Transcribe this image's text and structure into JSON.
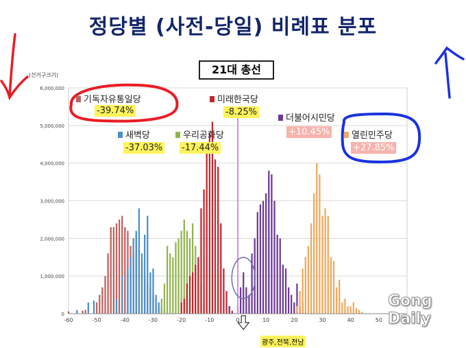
{
  "headline": "정당별 (사전-당일) 비례표 분포",
  "chart_data": {
    "type": "bar",
    "title": "21대 총선",
    "yunit": "(선거구크기)",
    "xlim": [
      -60,
      60
    ],
    "ylim": [
      0,
      6000000
    ],
    "xticks": [
      -60,
      -50,
      -40,
      -30,
      -20,
      -10,
      0,
      10,
      20,
      30,
      40,
      50
    ],
    "xtick_labels": [
      "-60",
      "-50",
      "-40",
      "-30",
      "-20",
      "-10",
      "0",
      "10",
      "20",
      "30",
      "40",
      "50"
    ],
    "yticks": [
      0,
      1000000,
      2000000,
      3000000,
      4000000,
      5000000,
      6000000
    ],
    "ytick_labels": [
      "0",
      "1,000,000",
      "2,000,000",
      "3,000,000",
      "4,000,000",
      "5,000,000",
      "6,000,000"
    ],
    "grid": true,
    "reference_line_x": 0,
    "series": [
      {
        "name": "기독자유통일당",
        "pct": "-39.74%",
        "color": "#c0605e",
        "label_style": "yellow",
        "x": [
          -60,
          -55,
          -54,
          -50,
          -49,
          -48,
          -47,
          -46,
          -45,
          -44,
          -43,
          -42,
          -41,
          -40,
          -39,
          -38,
          -37,
          -36,
          -35,
          -34,
          -33,
          -32,
          -31,
          -30,
          -29,
          -28,
          -27,
          -26
        ],
        "values": [
          60000,
          80000,
          100000,
          300000,
          500000,
          700000,
          1000000,
          1600000,
          2300000,
          2300000,
          2400000,
          2500000,
          2600000,
          2300000,
          2200000,
          1800000,
          1600000,
          2100000,
          1700000,
          1400000,
          1000000,
          800000,
          700000,
          500000,
          300000,
          200000,
          150000,
          100000
        ]
      },
      {
        "name": "새벽당",
        "pct": "-37.03%",
        "color": "#4a90c8",
        "label_style": "yellow",
        "x": [
          -57,
          -53,
          -51,
          -43,
          -41,
          -39,
          -38,
          -37,
          -36,
          -35,
          -34,
          -33,
          -32,
          -31,
          -30,
          -29,
          -28,
          -27
        ],
        "values": [
          100000,
          300000,
          350000,
          400000,
          1000000,
          1200000,
          1500000,
          2000000,
          2200000,
          2800000,
          1600000,
          2100000,
          2600000,
          1100000,
          1200000,
          500000,
          300000,
          200000
        ]
      },
      {
        "name": "우리공화당",
        "pct": "-17.44%",
        "color": "#93b34e",
        "label_style": "yellow",
        "x": [
          -27,
          -26,
          -25,
          -24,
          -23,
          -22,
          -21,
          -20,
          -19,
          -18,
          -17,
          -16,
          -15,
          -14,
          -13,
          -12
        ],
        "values": [
          400000,
          800000,
          1800000,
          1600000,
          1500000,
          1900000,
          2000000,
          2200000,
          2500000,
          2200000,
          2000000,
          2400000,
          1800000,
          1300000,
          800000,
          300000
        ]
      },
      {
        "name": "미래한국당",
        "pct": "-8.25%",
        "color": "#c0272d",
        "label_style": "yellow",
        "x": [
          -20,
          -19,
          -18,
          -17,
          -16,
          -15,
          -14,
          -13,
          -12,
          -11,
          -10,
          -9,
          -8,
          -7,
          -6,
          -5,
          -4,
          -3,
          -2
        ],
        "values": [
          300000,
          400000,
          800000,
          1000000,
          1100000,
          1300000,
          1500000,
          2800000,
          3300000,
          4300000,
          4800000,
          5100000,
          4100000,
          3900000,
          2400000,
          1200000,
          600000,
          200000,
          80000
        ]
      },
      {
        "name": "더불어시민당",
        "pct": "+10.45%",
        "color": "#6d3a94",
        "label_style": "pink",
        "x": [
          -3,
          0,
          1,
          2,
          3,
          4,
          5,
          6,
          7,
          8,
          9,
          10,
          11,
          12,
          13,
          14,
          15,
          16,
          17,
          18,
          19,
          20,
          21,
          22,
          23
        ],
        "values": [
          200000,
          200000,
          700000,
          1100000,
          700000,
          500000,
          1600000,
          2000000,
          2700000,
          2900000,
          3000000,
          3200000,
          3800000,
          3700000,
          3000000,
          2100000,
          2000000,
          1300000,
          1200000,
          700000,
          500000,
          300000,
          800000,
          200000,
          300000
        ]
      },
      {
        "name": "열린민주당",
        "pct": "+27.85%",
        "color": "#f0a85c",
        "label_style": "pink",
        "x": [
          21,
          22,
          23,
          24,
          25,
          26,
          27,
          28,
          29,
          30,
          31,
          32,
          33,
          34,
          35,
          36,
          37,
          38,
          39,
          40,
          41,
          42,
          43,
          44
        ],
        "values": [
          200000,
          600000,
          1200000,
          1500000,
          1800000,
          2400000,
          3200000,
          4000000,
          3700000,
          2600000,
          2800000,
          2600000,
          1500000,
          1400000,
          700000,
          900000,
          300000,
          400000,
          200000,
          200000,
          300000,
          150000,
          100000,
          50000
        ]
      }
    ]
  },
  "annotations": {
    "region_label": "광주,전북,전남"
  },
  "watermark": {
    "line1": "Gong",
    "line2": "Daily"
  }
}
